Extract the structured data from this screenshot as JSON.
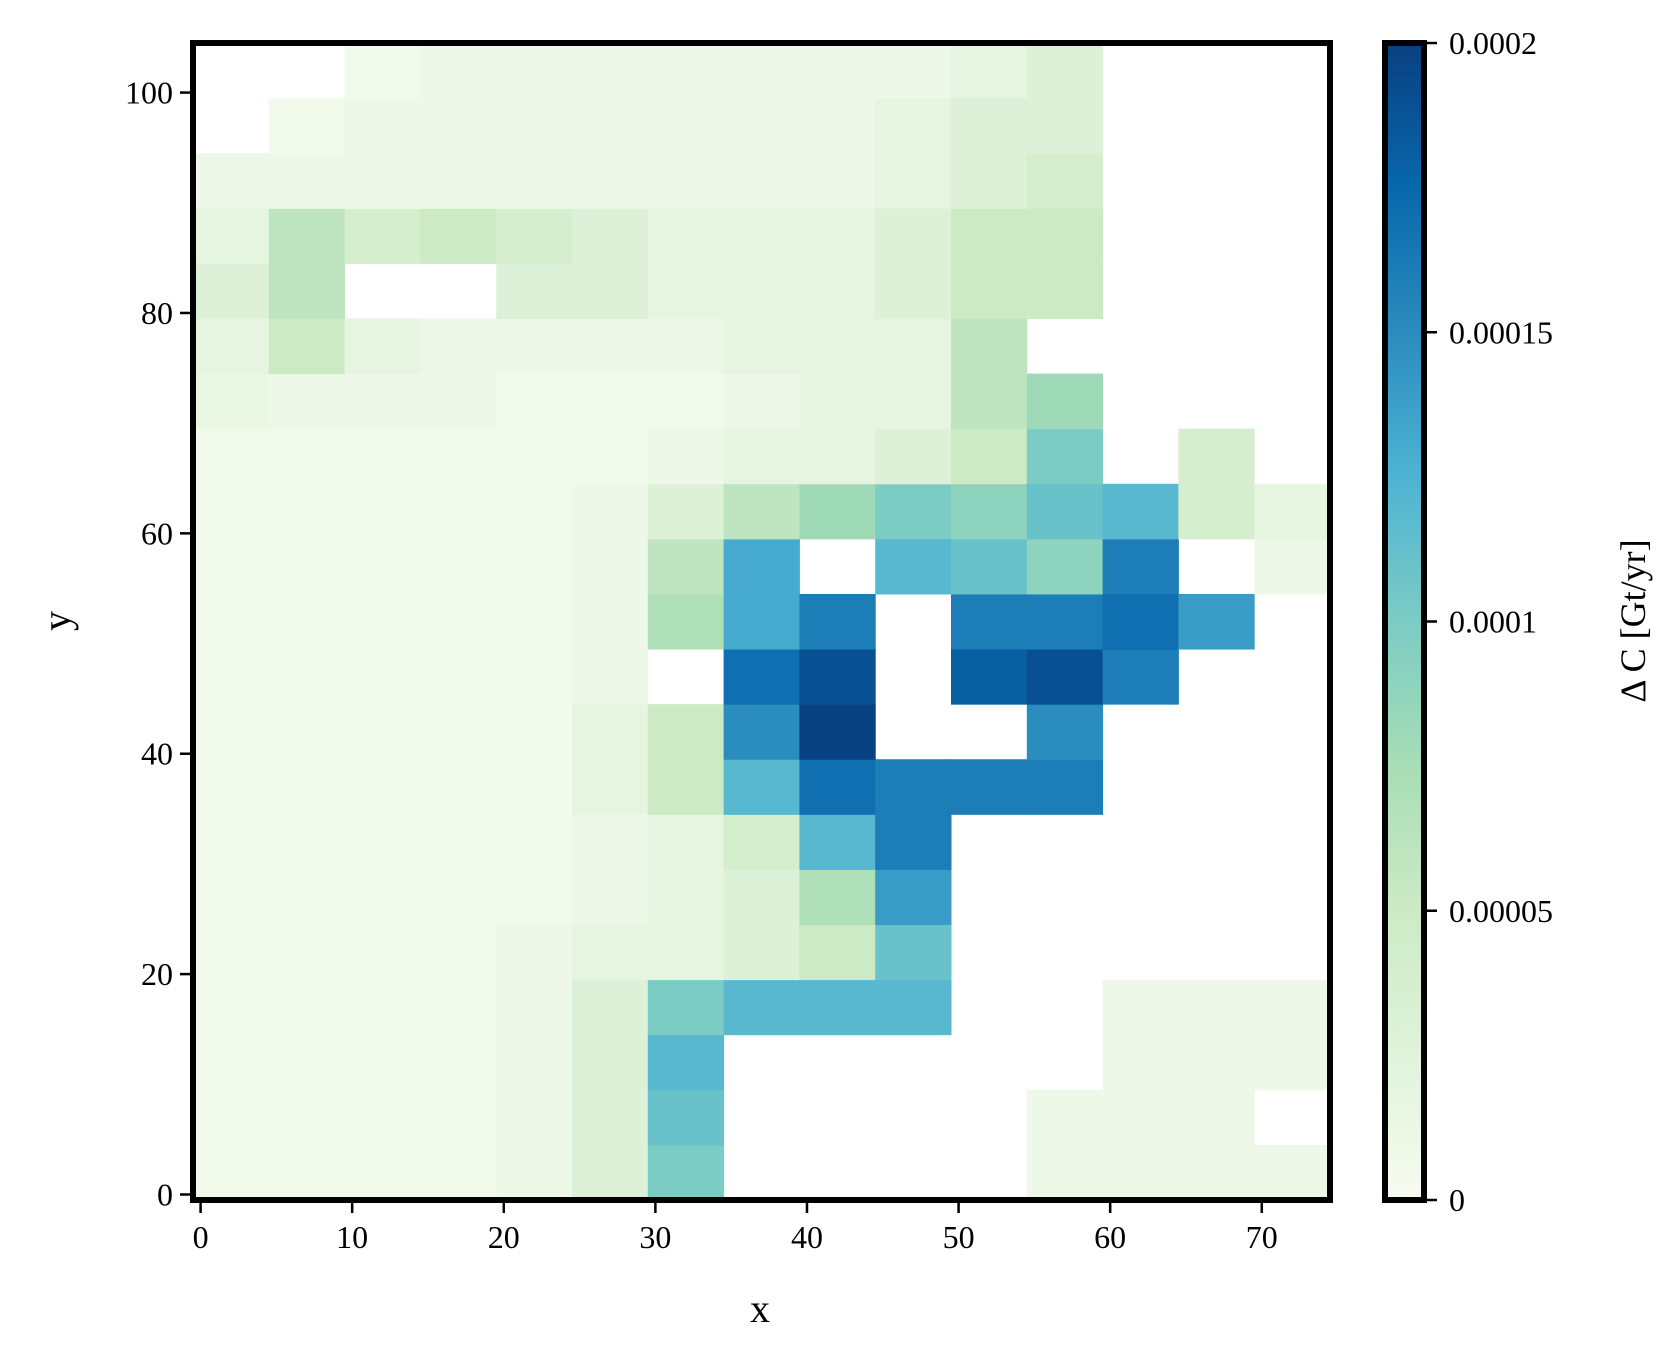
{
  "chart_data": {
    "type": "heatmap",
    "x_label": "x",
    "y_label": "y",
    "colorbar_label": "Δ C [Gt/yr]",
    "colormap": "GnBu",
    "xlim": [
      -0.5,
      74.5
    ],
    "ylim": [
      -0.5,
      104.5
    ],
    "xticks": [
      0,
      10,
      20,
      30,
      40,
      50,
      60,
      70
    ],
    "yticks": [
      0,
      20,
      40,
      60,
      80,
      100
    ],
    "clim": [
      0,
      0.0002
    ],
    "cticks": [
      0,
      5e-05,
      0.0001,
      0.00015,
      0.0002
    ],
    "x": [
      2,
      7,
      12,
      17,
      22,
      27,
      32,
      37,
      42,
      47,
      52,
      57,
      62,
      67,
      72
    ],
    "y": [
      2,
      7,
      12,
      17,
      22,
      27,
      32,
      37,
      42,
      47,
      52,
      57,
      62,
      67,
      72,
      77,
      82,
      87,
      92,
      97,
      102
    ],
    "z": [
      [
        5e-06,
        5e-06,
        5e-06,
        5e-06,
        1e-05,
        3e-05,
        0.0001,
        null,
        null,
        null,
        null,
        1e-05,
        1e-05,
        1e-05,
        1e-05
      ],
      [
        5e-06,
        5e-06,
        5e-06,
        5e-06,
        1e-05,
        3e-05,
        0.00011,
        null,
        null,
        null,
        null,
        1e-05,
        1e-05,
        1e-05,
        null
      ],
      [
        5e-06,
        5e-06,
        5e-06,
        5e-06,
        1e-05,
        3e-05,
        0.00012,
        null,
        null,
        null,
        null,
        null,
        1e-05,
        1e-05,
        1e-05
      ],
      [
        5e-06,
        5e-06,
        5e-06,
        5e-06,
        1e-05,
        3e-05,
        0.0001,
        0.00012,
        0.00012,
        0.00012,
        null,
        null,
        1e-05,
        1e-05,
        1e-05
      ],
      [
        5e-06,
        5e-06,
        5e-06,
        5e-06,
        1e-05,
        2e-05,
        2e-05,
        3e-05,
        5e-05,
        0.00011,
        null,
        null,
        null,
        null,
        null
      ],
      [
        5e-06,
        5e-06,
        5e-06,
        5e-06,
        5e-06,
        1e-05,
        2e-05,
        3e-05,
        7e-05,
        0.00014,
        null,
        null,
        null,
        null,
        null
      ],
      [
        5e-06,
        5e-06,
        5e-06,
        5e-06,
        5e-06,
        1e-05,
        2e-05,
        4e-05,
        0.00012,
        0.00016,
        null,
        null,
        null,
        null,
        null
      ],
      [
        5e-06,
        5e-06,
        5e-06,
        5e-06,
        5e-06,
        2e-05,
        5e-05,
        0.00012,
        0.00017,
        0.00016,
        0.00016,
        0.00016,
        null,
        null,
        null
      ],
      [
        5e-06,
        5e-06,
        5e-06,
        5e-06,
        5e-06,
        2e-05,
        5e-05,
        0.00015,
        0.0002,
        null,
        null,
        0.00015,
        null,
        null,
        null
      ],
      [
        5e-06,
        5e-06,
        5e-06,
        5e-06,
        5e-06,
        1e-05,
        null,
        0.00017,
        0.00019,
        null,
        0.00018,
        0.00019,
        0.00016,
        null,
        null
      ],
      [
        5e-06,
        5e-06,
        5e-06,
        5e-06,
        5e-06,
        1e-05,
        7e-05,
        0.00013,
        0.00016,
        null,
        0.00016,
        0.00016,
        0.00017,
        0.00014,
        null
      ],
      [
        5e-06,
        5e-06,
        5e-06,
        5e-06,
        5e-06,
        1e-05,
        6e-05,
        0.00013,
        null,
        0.00012,
        0.00011,
        9e-05,
        0.00016,
        null,
        1e-05
      ],
      [
        5e-06,
        5e-06,
        5e-06,
        5e-06,
        5e-06,
        1e-05,
        3e-05,
        6e-05,
        8e-05,
        0.0001,
        9e-05,
        0.00011,
        0.00012,
        4e-05,
        2e-05
      ],
      [
        5e-06,
        5e-06,
        5e-06,
        5e-06,
        5e-06,
        5e-06,
        1e-05,
        2e-05,
        2e-05,
        3e-05,
        5e-05,
        0.0001,
        null,
        4e-05,
        null
      ],
      [
        1.5e-05,
        1e-05,
        1e-05,
        1e-05,
        5e-06,
        5e-06,
        5e-06,
        1e-05,
        2e-05,
        2e-05,
        6e-05,
        8e-05,
        null,
        null,
        null
      ],
      [
        2e-05,
        5e-05,
        2e-05,
        1e-05,
        1e-05,
        1e-05,
        1e-05,
        2e-05,
        2e-05,
        2e-05,
        6e-05,
        null,
        null,
        null,
        null
      ],
      [
        3e-05,
        6e-05,
        null,
        null,
        3e-05,
        3e-05,
        2e-05,
        2e-05,
        2e-05,
        3e-05,
        5e-05,
        5e-05,
        null,
        null,
        null
      ],
      [
        2e-05,
        6e-05,
        4e-05,
        5e-05,
        4e-05,
        3e-05,
        2e-05,
        2e-05,
        2e-05,
        3e-05,
        5e-05,
        5e-05,
        null,
        null,
        null
      ],
      [
        1e-05,
        1e-05,
        1e-05,
        1e-05,
        1e-05,
        1e-05,
        1e-05,
        1e-05,
        1e-05,
        2e-05,
        3e-05,
        4e-05,
        null,
        null,
        null
      ],
      [
        null,
        5e-06,
        1e-05,
        1e-05,
        1e-05,
        1e-05,
        1e-05,
        1e-05,
        1e-05,
        2e-05,
        3e-05,
        3e-05,
        null,
        null,
        null
      ],
      [
        null,
        null,
        5e-06,
        1e-05,
        1e-05,
        1e-05,
        1e-05,
        1e-05,
        1e-05,
        1e-05,
        2e-05,
        3e-05,
        null,
        null,
        null
      ]
    ]
  }
}
